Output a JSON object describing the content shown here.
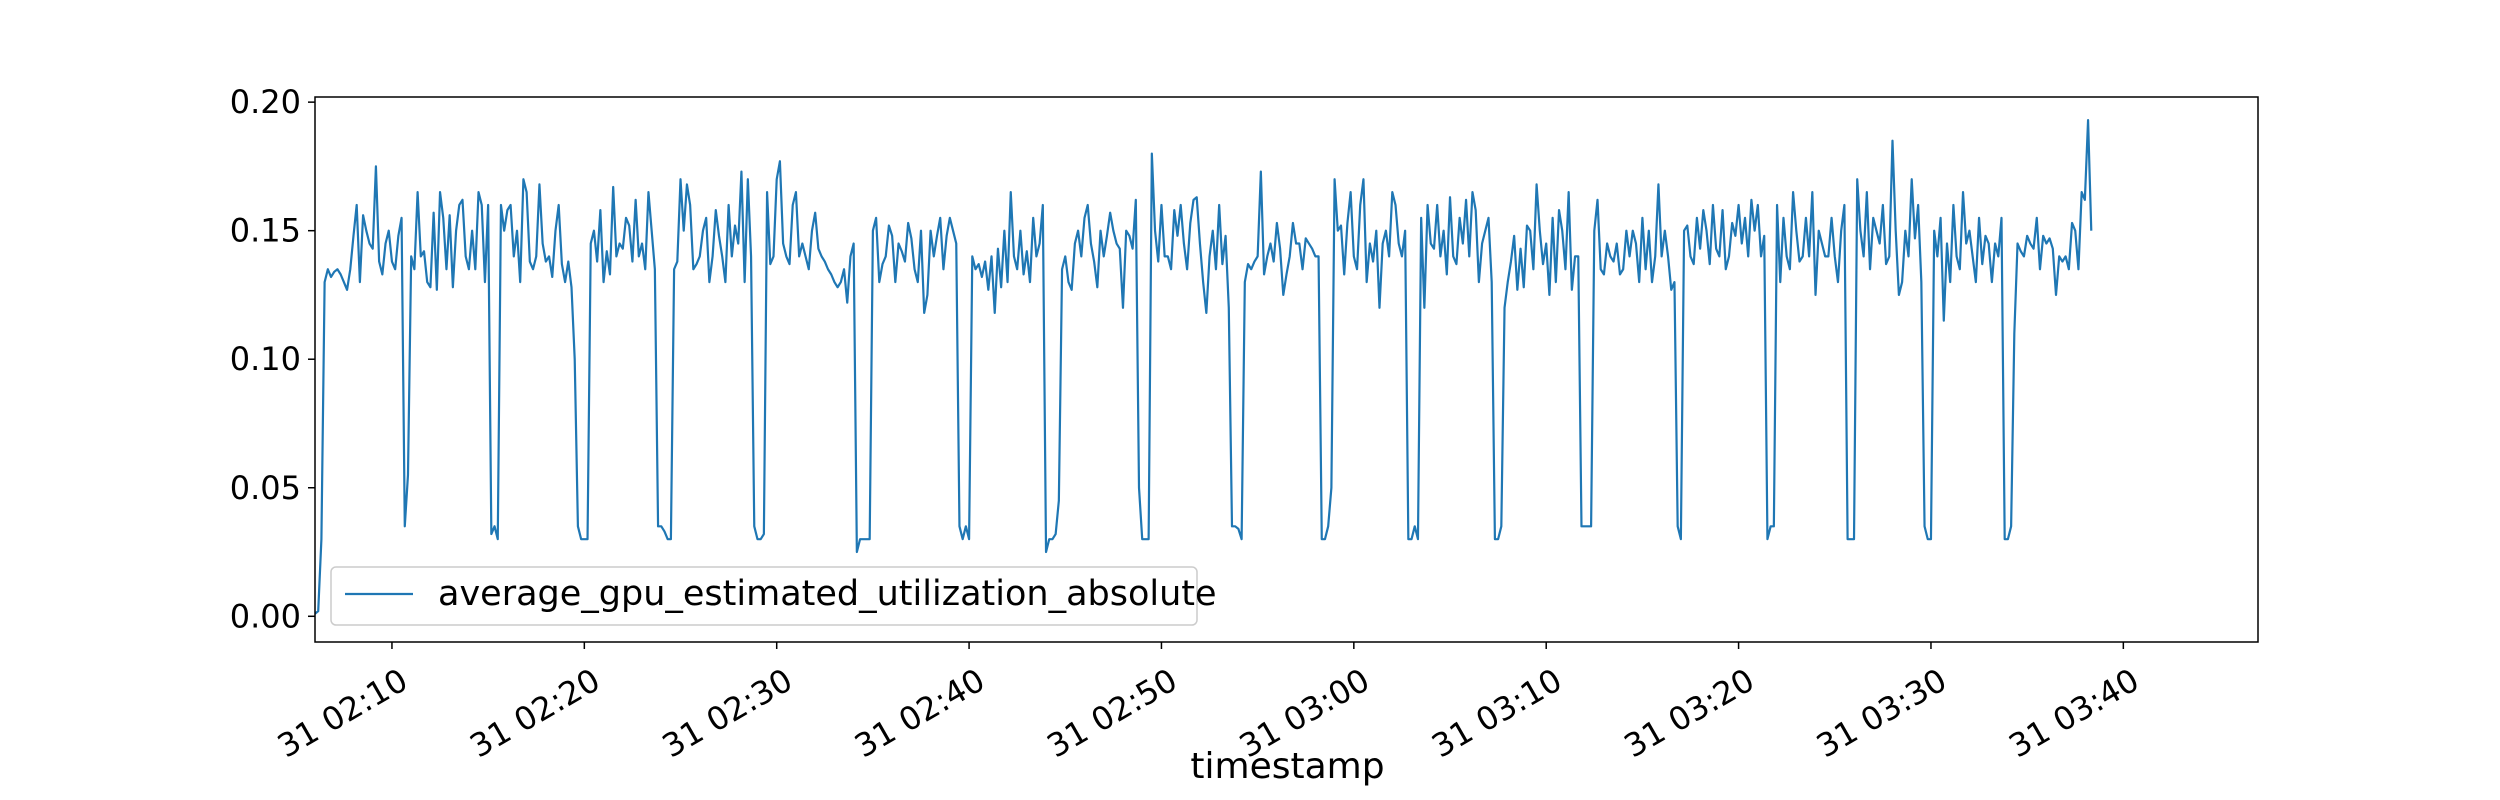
{
  "chart_data": {
    "type": "line",
    "title": "",
    "xlabel": "timestamp",
    "ylabel": "",
    "ylim": [
      -0.01,
      0.202
    ],
    "xlim": [
      "2025-01-31 02:06:00",
      "2025-01-31 03:47:00"
    ],
    "x_ticks": [
      "31 02:10",
      "31 02:20",
      "31 02:30",
      "31 02:40",
      "31 02:50",
      "31 03:00",
      "31 03:10",
      "31 03:20",
      "31 03:30",
      "31 03:40"
    ],
    "y_ticks": [
      "0.00",
      "0.05",
      "0.10",
      "0.15",
      "0.20"
    ],
    "grid": false,
    "legend": {
      "position": "lower-left"
    },
    "series": [
      {
        "name": "average_gpu_estimated_utilization_absolute",
        "color": "#1f77b4",
        "start": "2025-01-31 02:06:00",
        "interval_seconds": 10,
        "values": [
          0.001,
          0.002,
          0.03,
          0.13,
          0.135,
          0.132,
          0.134,
          0.135,
          0.133,
          0.13,
          0.127,
          0.135,
          0.148,
          0.16,
          0.13,
          0.156,
          0.15,
          0.145,
          0.143,
          0.175,
          0.138,
          0.133,
          0.145,
          0.15,
          0.138,
          0.135,
          0.148,
          0.155,
          0.035,
          0.055,
          0.14,
          0.135,
          0.165,
          0.14,
          0.142,
          0.13,
          0.128,
          0.157,
          0.127,
          0.165,
          0.155,
          0.135,
          0.156,
          0.128,
          0.15,
          0.16,
          0.162,
          0.14,
          0.135,
          0.15,
          0.135,
          0.165,
          0.16,
          0.13,
          0.16,
          0.032,
          0.035,
          0.03,
          0.16,
          0.15,
          0.158,
          0.16,
          0.14,
          0.15,
          0.13,
          0.17,
          0.165,
          0.138,
          0.135,
          0.14,
          0.168,
          0.145,
          0.138,
          0.14,
          0.132,
          0.15,
          0.16,
          0.137,
          0.13,
          0.138,
          0.128,
          0.1,
          0.035,
          0.03,
          0.03,
          0.03,
          0.145,
          0.15,
          0.138,
          0.158,
          0.13,
          0.142,
          0.133,
          0.167,
          0.14,
          0.145,
          0.143,
          0.155,
          0.152,
          0.138,
          0.162,
          0.14,
          0.145,
          0.135,
          0.165,
          0.15,
          0.135,
          0.035,
          0.035,
          0.033,
          0.03,
          0.03,
          0.135,
          0.138,
          0.17,
          0.15,
          0.168,
          0.16,
          0.135,
          0.137,
          0.14,
          0.15,
          0.155,
          0.13,
          0.14,
          0.158,
          0.148,
          0.14,
          0.13,
          0.16,
          0.14,
          0.152,
          0.145,
          0.173,
          0.13,
          0.17,
          0.14,
          0.035,
          0.03,
          0.03,
          0.032,
          0.165,
          0.137,
          0.14,
          0.17,
          0.177,
          0.145,
          0.14,
          0.137,
          0.16,
          0.165,
          0.14,
          0.145,
          0.14,
          0.135,
          0.15,
          0.157,
          0.143,
          0.14,
          0.138,
          0.135,
          0.133,
          0.13,
          0.128,
          0.13,
          0.135,
          0.122,
          0.14,
          0.145,
          0.025,
          0.03,
          0.03,
          0.03,
          0.03,
          0.15,
          0.155,
          0.13,
          0.137,
          0.14,
          0.152,
          0.148,
          0.13,
          0.145,
          0.142,
          0.138,
          0.153,
          0.147,
          0.135,
          0.13,
          0.15,
          0.118,
          0.125,
          0.15,
          0.14,
          0.148,
          0.155,
          0.135,
          0.148,
          0.155,
          0.15,
          0.145,
          0.035,
          0.03,
          0.035,
          0.03,
          0.14,
          0.135,
          0.137,
          0.132,
          0.138,
          0.127,
          0.14,
          0.118,
          0.143,
          0.128,
          0.15,
          0.13,
          0.165,
          0.14,
          0.135,
          0.15,
          0.133,
          0.142,
          0.13,
          0.155,
          0.14,
          0.145,
          0.16,
          0.025,
          0.03,
          0.03,
          0.032,
          0.045,
          0.135,
          0.14,
          0.13,
          0.127,
          0.145,
          0.15,
          0.14,
          0.155,
          0.16,
          0.145,
          0.138,
          0.128,
          0.15,
          0.14,
          0.148,
          0.157,
          0.15,
          0.145,
          0.143,
          0.12,
          0.15,
          0.148,
          0.143,
          0.162,
          0.05,
          0.03,
          0.03,
          0.03,
          0.18,
          0.15,
          0.138,
          0.16,
          0.14,
          0.14,
          0.135,
          0.158,
          0.148,
          0.16,
          0.145,
          0.135,
          0.153,
          0.162,
          0.163,
          0.145,
          0.13,
          0.118,
          0.14,
          0.15,
          0.135,
          0.16,
          0.137,
          0.148,
          0.12,
          0.035,
          0.035,
          0.034,
          0.03,
          0.13,
          0.137,
          0.135,
          0.138,
          0.14,
          0.173,
          0.133,
          0.14,
          0.145,
          0.138,
          0.153,
          0.143,
          0.125,
          0.133,
          0.14,
          0.153,
          0.145,
          0.145,
          0.135,
          0.147,
          0.145,
          0.143,
          0.14,
          0.14,
          0.03,
          0.03,
          0.035,
          0.05,
          0.17,
          0.15,
          0.152,
          0.133,
          0.153,
          0.165,
          0.14,
          0.135,
          0.16,
          0.17,
          0.13,
          0.145,
          0.138,
          0.15,
          0.12,
          0.145,
          0.15,
          0.14,
          0.165,
          0.16,
          0.145,
          0.14,
          0.15,
          0.03,
          0.03,
          0.035,
          0.03,
          0.155,
          0.12,
          0.16,
          0.145,
          0.143,
          0.16,
          0.14,
          0.15,
          0.133,
          0.163,
          0.14,
          0.137,
          0.155,
          0.145,
          0.162,
          0.14,
          0.165,
          0.158,
          0.13,
          0.145,
          0.15,
          0.155,
          0.13,
          0.03,
          0.03,
          0.035,
          0.12,
          0.13,
          0.138,
          0.148,
          0.127,
          0.143,
          0.128,
          0.152,
          0.15,
          0.135,
          0.168,
          0.15,
          0.137,
          0.145,
          0.125,
          0.155,
          0.13,
          0.158,
          0.15,
          0.135,
          0.165,
          0.127,
          0.14,
          0.14,
          0.035,
          0.035,
          0.035,
          0.035,
          0.15,
          0.162,
          0.135,
          0.133,
          0.145,
          0.14,
          0.138,
          0.145,
          0.133,
          0.135,
          0.15,
          0.14,
          0.15,
          0.145,
          0.13,
          0.155,
          0.135,
          0.15,
          0.13,
          0.14,
          0.168,
          0.14,
          0.15,
          0.14,
          0.127,
          0.13,
          0.035,
          0.03,
          0.15,
          0.152,
          0.14,
          0.137,
          0.155,
          0.143,
          0.158,
          0.15,
          0.137,
          0.16,
          0.143,
          0.14,
          0.158,
          0.135,
          0.14,
          0.153,
          0.148,
          0.16,
          0.145,
          0.155,
          0.14,
          0.162,
          0.15,
          0.16,
          0.14,
          0.148,
          0.03,
          0.035,
          0.035,
          0.16,
          0.13,
          0.155,
          0.14,
          0.135,
          0.165,
          0.15,
          0.138,
          0.14,
          0.155,
          0.14,
          0.165,
          0.125,
          0.15,
          0.145,
          0.14,
          0.14,
          0.155,
          0.14,
          0.13,
          0.15,
          0.16,
          0.03,
          0.03,
          0.03,
          0.17,
          0.15,
          0.14,
          0.165,
          0.135,
          0.155,
          0.15,
          0.145,
          0.16,
          0.137,
          0.14,
          0.185,
          0.15,
          0.125,
          0.13,
          0.15,
          0.14,
          0.17,
          0.147,
          0.16,
          0.13,
          0.035,
          0.03,
          0.03,
          0.15,
          0.14,
          0.155,
          0.115,
          0.145,
          0.13,
          0.16,
          0.14,
          0.135,
          0.165,
          0.145,
          0.15,
          0.14,
          0.13,
          0.155,
          0.137,
          0.148,
          0.145,
          0.13,
          0.145,
          0.14,
          0.155,
          0.03,
          0.03,
          0.035,
          0.11,
          0.145,
          0.142,
          0.14,
          0.148,
          0.145,
          0.143,
          0.155,
          0.135,
          0.148,
          0.145,
          0.147,
          0.143,
          0.125,
          0.14,
          0.138,
          0.14,
          0.135,
          0.153,
          0.15,
          0.135,
          0.165,
          0.162,
          0.193,
          0.15
        ]
      }
    ]
  }
}
